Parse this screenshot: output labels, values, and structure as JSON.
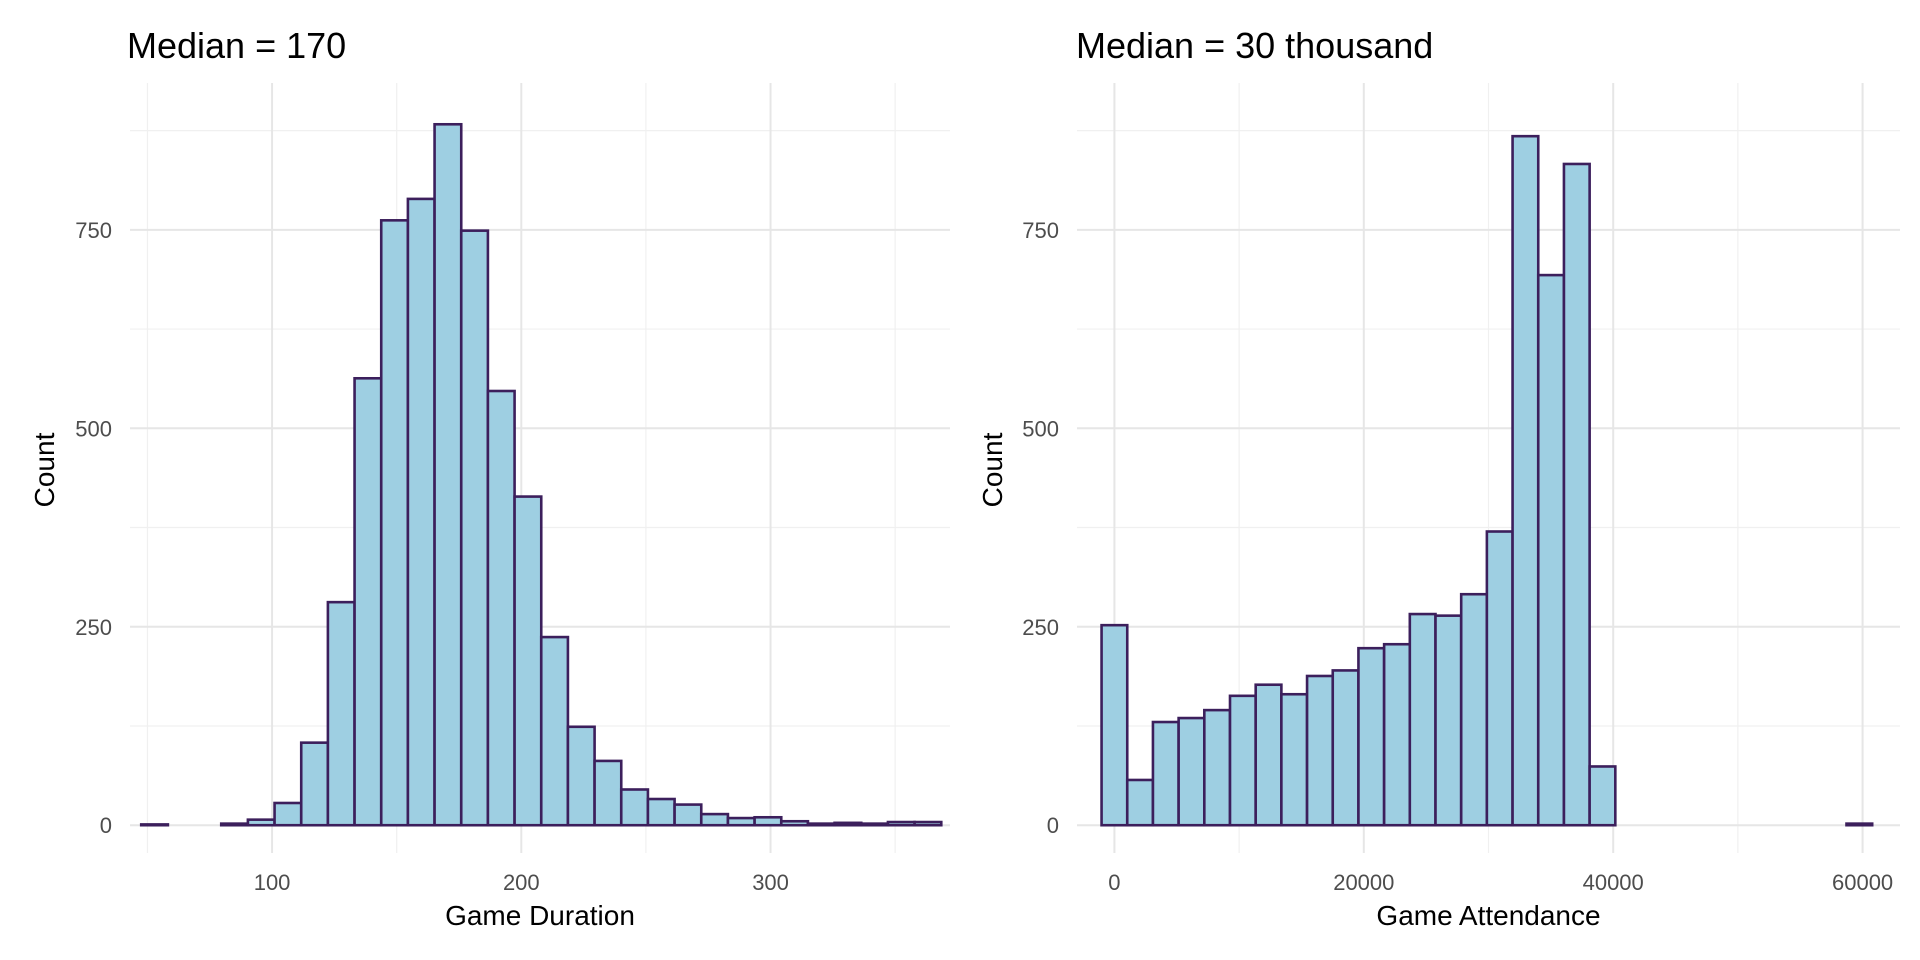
{
  "chart_data": [
    {
      "type": "bar",
      "title": "Median = 170",
      "xlabel": "Game Duration",
      "ylabel": "Count",
      "xlim": [
        43,
        372
      ],
      "ylim": [
        -35,
        935
      ],
      "x_major_ticks": [
        100,
        200,
        300
      ],
      "x_minor_ticks": [
        50,
        150,
        250,
        350
      ],
      "y_major_ticks": [
        0,
        250,
        500,
        750
      ],
      "y_minor_ticks": [
        125,
        375,
        625,
        875
      ],
      "bin_width": 10.7,
      "bin_start": 47.5,
      "values": [
        1,
        0,
        0,
        2,
        7,
        28,
        104,
        281,
        563,
        762,
        789,
        883,
        749,
        547,
        414,
        237,
        124,
        81,
        45,
        33,
        26,
        14,
        9,
        10,
        5,
        2,
        3,
        2,
        4,
        4
      ],
      "fill_color": "#9ecfe2",
      "edge_color": "#3c1f5c"
    },
    {
      "type": "bar",
      "title": "Median = 30 thousand",
      "xlabel": "Game Attendance",
      "ylabel": "Count",
      "xlim": [
        -3000,
        63000
      ],
      "ylim": [
        -35,
        935
      ],
      "x_major_ticks": [
        0,
        20000,
        40000,
        60000
      ],
      "x_minor_ticks": [
        10000,
        30000,
        50000
      ],
      "y_major_ticks": [
        0,
        250,
        500,
        750
      ],
      "y_minor_ticks": [
        125,
        375,
        625,
        875
      ],
      "bin_width": 2060,
      "bin_start": -1030,
      "values": [
        252,
        57,
        130,
        135,
        145,
        163,
        177,
        165,
        188,
        195,
        223,
        228,
        266,
        264,
        291,
        370,
        868,
        693,
        833,
        74,
        0,
        0,
        0,
        0,
        0,
        0,
        0,
        0,
        0,
        2
      ],
      "fill_color": "#9ecfe2",
      "edge_color": "#3c1f5c"
    }
  ]
}
